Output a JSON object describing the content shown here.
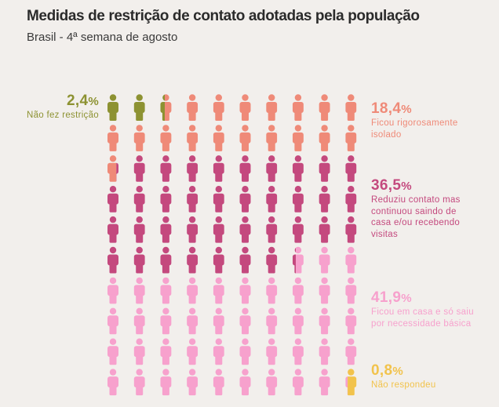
{
  "header": {
    "title": "Medidas de restrição de contato adotadas pela população",
    "subtitle": "Brasil - 4ª semana de agosto"
  },
  "chart_data": {
    "type": "pictogram",
    "units": 100,
    "categories": [
      {
        "key": "nao_fez",
        "value": 2.4,
        "value_label": "2,4",
        "unit_label": "%",
        "label": "Não fez restrição",
        "color": "#8d9232"
      },
      {
        "key": "isolado",
        "value": 18.4,
        "value_label": "18,4",
        "unit_label": "%",
        "label": "Ficou rigorosamente isolado",
        "color": "#ef8a78"
      },
      {
        "key": "reduziu",
        "value": 36.5,
        "value_label": "36,5",
        "unit_label": "%",
        "label": "Reduziu contato mas continuou saindo de casa e/ou recebendo visitas",
        "color": "#c4497e"
      },
      {
        "key": "necessidade",
        "value": 41.9,
        "value_label": "41,9",
        "unit_label": "%",
        "label": "Ficou em casa e só saiu por necessidade básica",
        "color": "#f7a1cd"
      },
      {
        "key": "nao_respondeu",
        "value": 0.8,
        "value_label": "0,8",
        "unit_label": "%",
        "label": "Não respondeu",
        "color": "#f2c34c"
      }
    ]
  }
}
